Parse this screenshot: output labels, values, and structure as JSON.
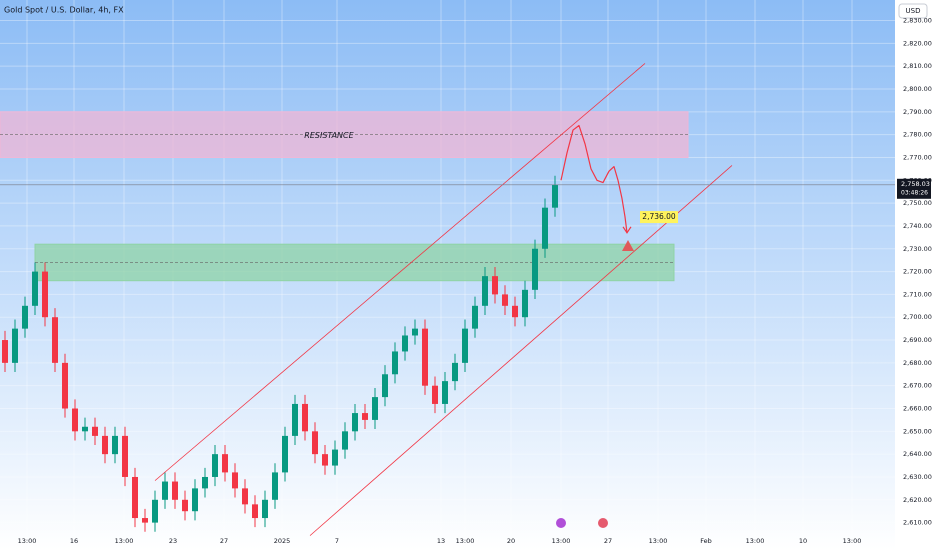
{
  "chart_data": {
    "type": "candlestick",
    "title": "Gold Spot / U.S. Dollar, 4h, FX",
    "currency": "USD",
    "up_color": "#089981",
    "down_color": "#f23645",
    "line_color": "#f23645",
    "xlim": [
      -0.5,
      89
    ],
    "ylim": [
      2598,
      2839
    ],
    "grid": true,
    "open": [
      2690,
      2680,
      2695,
      2705,
      2720,
      2700,
      2680,
      2660,
      2650,
      2652,
      2648,
      2640,
      2648,
      2630,
      2612,
      2610,
      2620,
      2628,
      2620,
      2615,
      2625,
      2630,
      2640,
      2632,
      2625,
      2618,
      2612,
      2620,
      2632,
      2648,
      2662,
      2650,
      2640,
      2635,
      2642,
      2650,
      2658,
      2655,
      2665,
      2675,
      2685,
      2692,
      2695,
      2670,
      2662,
      2672,
      2680,
      2695,
      2705,
      2718,
      2710,
      2705,
      2700,
      2712,
      2730,
      2748
    ],
    "high": [
      2694,
      2699,
      2709,
      2724,
      2724,
      2704,
      2684,
      2664,
      2656,
      2656,
      2652,
      2652,
      2652,
      2634,
      2616,
      2624,
      2632,
      2632,
      2624,
      2629,
      2634,
      2644,
      2644,
      2636,
      2629,
      2622,
      2624,
      2636,
      2652,
      2666,
      2666,
      2654,
      2644,
      2646,
      2654,
      2662,
      2662,
      2669,
      2679,
      2689,
      2696,
      2699,
      2699,
      2674,
      2676,
      2684,
      2699,
      2709,
      2722,
      2722,
      2714,
      2709,
      2716,
      2734,
      2752,
      2762
    ],
    "low": [
      2676,
      2676,
      2691,
      2701,
      2696,
      2676,
      2656,
      2646,
      2646,
      2644,
      2636,
      2636,
      2626,
      2608,
      2606,
      2606,
      2616,
      2616,
      2611,
      2611,
      2621,
      2626,
      2628,
      2621,
      2614,
      2608,
      2608,
      2616,
      2628,
      2644,
      2646,
      2636,
      2631,
      2631,
      2638,
      2646,
      2651,
      2651,
      2661,
      2671,
      2681,
      2688,
      2666,
      2658,
      2658,
      2668,
      2676,
      2691,
      2701,
      2706,
      2701,
      2696,
      2696,
      2708,
      2726,
      2744
    ],
    "close": [
      2680,
      2695,
      2705,
      2720,
      2700,
      2680,
      2660,
      2650,
      2652,
      2648,
      2640,
      2648,
      2630,
      2612,
      2610,
      2620,
      2628,
      2620,
      2615,
      2625,
      2630,
      2640,
      2632,
      2625,
      2618,
      2612,
      2620,
      2632,
      2648,
      2662,
      2650,
      2640,
      2635,
      2642,
      2650,
      2658,
      2655,
      2665,
      2675,
      2685,
      2692,
      2695,
      2670,
      2662,
      2672,
      2680,
      2695,
      2705,
      2718,
      2710,
      2705,
      2700,
      2712,
      2730,
      2748,
      2758
    ],
    "yticks": [
      {
        "value": 2610,
        "label": "2,610.00"
      },
      {
        "value": 2620,
        "label": "2,620.00"
      },
      {
        "value": 2630,
        "label": "2,630.00"
      },
      {
        "value": 2640,
        "label": "2,640.00"
      },
      {
        "value": 2650,
        "label": "2,650.00"
      },
      {
        "value": 2660,
        "label": "2,660.00"
      },
      {
        "value": 2670,
        "label": "2,670.00"
      },
      {
        "value": 2680,
        "label": "2,680.00"
      },
      {
        "value": 2690,
        "label": "2,690.00"
      },
      {
        "value": 2700,
        "label": "2,700.00"
      },
      {
        "value": 2710,
        "label": "2,710.00"
      },
      {
        "value": 2720,
        "label": "2,720.00"
      },
      {
        "value": 2730,
        "label": "2,730.00"
      },
      {
        "value": 2740,
        "label": "2,740.00"
      },
      {
        "value": 2750,
        "label": "2,750.00"
      },
      {
        "value": 2760,
        "label": "2,760.00"
      },
      {
        "value": 2770,
        "label": "2,770.00"
      },
      {
        "value": 2780,
        "label": "2,780.00"
      },
      {
        "value": 2790,
        "label": "2,790.00"
      },
      {
        "value": 2800,
        "label": "2,800.00"
      },
      {
        "value": 2810,
        "label": "2,810.00"
      },
      {
        "value": 2820,
        "label": "2,820.00"
      },
      {
        "value": 2830,
        "label": "2,830.00"
      }
    ],
    "xticks": [
      {
        "value": 2.2,
        "label": "13:00"
      },
      {
        "value": 6.9,
        "label": "16"
      },
      {
        "value": 11.9,
        "label": "13:00"
      },
      {
        "value": 16.8,
        "label": "23"
      },
      {
        "value": 21.9,
        "label": "27"
      },
      {
        "value": 27.7,
        "label": "2025"
      },
      {
        "value": 33.2,
        "label": "7"
      },
      {
        "value": 43.6,
        "label": "13"
      },
      {
        "value": 46,
        "label": "13:00"
      },
      {
        "value": 50.6,
        "label": "20"
      },
      {
        "value": 55.6,
        "label": "13:00"
      },
      {
        "value": 60.3,
        "label": "27"
      },
      {
        "value": 65.3,
        "label": "13:00"
      },
      {
        "value": 70.1,
        "label": "Feb"
      },
      {
        "value": 75,
        "label": "13:00"
      },
      {
        "value": 79.8,
        "label": "10"
      },
      {
        "value": 84.7,
        "label": "13:00"
      }
    ],
    "zones": [
      {
        "name": "RESISTANCE",
        "range": [
          2770,
          2790
        ],
        "mid": 2780,
        "xend": 68.3,
        "color": "#f0b6d6"
      },
      {
        "range": [
          2716,
          2732
        ],
        "mid": 2724,
        "xstart": 3,
        "xend": 66.9,
        "color": "#8fd3a6"
      }
    ],
    "channels": [
      {
        "x": [
          15,
          64
        ],
        "y": [
          2628.4,
          2811.2
        ]
      },
      {
        "x": [
          30.5,
          72.7
        ],
        "y": [
          2604.3,
          2766.5
        ]
      }
    ],
    "projection": {
      "x": [
        55.6,
        56.2,
        56.8,
        57.4,
        58.0,
        58.6,
        59.2,
        59.8,
        60.4,
        60.9,
        61.3,
        61.7,
        62.0,
        62.2
      ],
      "y": [
        2760,
        2772,
        2782,
        2784,
        2776,
        2765,
        2760,
        2759,
        2764,
        2766,
        2760,
        2752,
        2744,
        2737
      ]
    },
    "last_price": {
      "value": 2758.03,
      "label": "2,758.03"
    },
    "countdown": "03:48:26",
    "target": {
      "value": 2736,
      "label": "2,736.00"
    }
  }
}
